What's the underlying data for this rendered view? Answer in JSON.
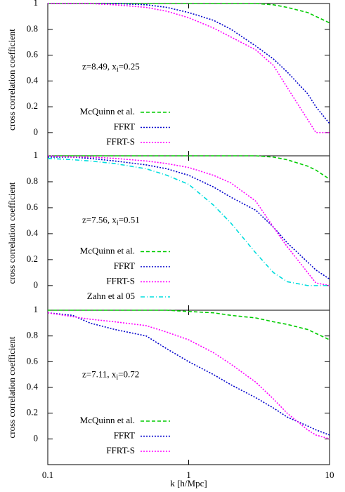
{
  "chart_data": [
    {
      "type": "line",
      "ylabel": "cross correlation coefficient",
      "annotation": [
        "z=8.49, x",
        "i",
        "=0.25"
      ],
      "x": [
        0.1,
        0.15,
        0.2,
        0.3,
        0.5,
        0.7,
        1,
        1.5,
        2,
        3,
        4,
        5,
        7,
        8,
        10
      ],
      "xlim": [
        0.1,
        10
      ],
      "xticks": [
        0.1,
        1,
        10
      ],
      "xlog": true,
      "xtick_labels": false,
      "ylim": [
        -0.18,
        1
      ],
      "yticks": [
        0,
        0.2,
        0.4,
        0.6,
        0.8,
        1
      ],
      "legend": "lower left",
      "series": [
        {
          "name": "McQuinn et al.",
          "color": "#00cc00",
          "dash": "dashed",
          "values": [
            1,
            1,
            1,
            1,
            1,
            1,
            1,
            1,
            1,
            1,
            0.99,
            0.97,
            0.93,
            0.9,
            0.85
          ]
        },
        {
          "name": "FFRT",
          "color": "#0000cc",
          "dash": "dotted",
          "values": [
            1,
            1,
            1,
            1,
            0.99,
            0.97,
            0.93,
            0.87,
            0.8,
            0.67,
            0.57,
            0.47,
            0.3,
            0.2,
            0.07
          ]
        },
        {
          "name": "FFRT-S",
          "color": "#ff00ff",
          "dash": "dotted",
          "values": [
            1,
            1,
            1,
            0.99,
            0.97,
            0.94,
            0.89,
            0.81,
            0.74,
            0.64,
            0.52,
            0.35,
            0.1,
            0,
            0
          ]
        }
      ]
    },
    {
      "type": "line",
      "ylabel": "cross correlation coefficient",
      "annotation": [
        "z=7.56, x",
        "i",
        "=0.51"
      ],
      "x": [
        0.1,
        0.15,
        0.2,
        0.3,
        0.5,
        0.7,
        1,
        1.5,
        2,
        3,
        4,
        5,
        7,
        8,
        10
      ],
      "xlim": [
        0.1,
        10
      ],
      "xticks": [
        0.1,
        1,
        10
      ],
      "xlog": true,
      "xtick_labels": false,
      "ylim": [
        -0.19,
        1
      ],
      "yticks": [
        0,
        0.2,
        0.4,
        0.6,
        0.8,
        1
      ],
      "legend": "lower left",
      "series": [
        {
          "name": "McQuinn et al.",
          "color": "#00cc00",
          "dash": "dashed",
          "values": [
            1,
            1,
            1,
            1,
            1,
            1,
            1,
            1,
            1,
            1,
            0.99,
            0.97,
            0.92,
            0.89,
            0.82
          ]
        },
        {
          "name": "FFRT",
          "color": "#0000cc",
          "dash": "dotted",
          "values": [
            0.99,
            0.99,
            0.98,
            0.96,
            0.93,
            0.9,
            0.85,
            0.76,
            0.68,
            0.58,
            0.45,
            0.33,
            0.18,
            0.12,
            0.05
          ]
        },
        {
          "name": "FFRT-S",
          "color": "#ff00ff",
          "dash": "dotted",
          "values": [
            1,
            0.99,
            0.99,
            0.98,
            0.96,
            0.94,
            0.91,
            0.85,
            0.79,
            0.65,
            0.45,
            0.3,
            0.1,
            0.02,
            0
          ]
        },
        {
          "name": "Zahn et al 05",
          "color": "#00dddd",
          "dash": "dashdot",
          "values": [
            0.98,
            0.97,
            0.96,
            0.94,
            0.9,
            0.85,
            0.78,
            0.62,
            0.48,
            0.25,
            0.1,
            0.03,
            0,
            0,
            0
          ]
        }
      ]
    },
    {
      "type": "line",
      "ylabel": "cross correlation coefficient",
      "xlabel": "k [h/Mpc]",
      "annotation": [
        "z=7.11, x",
        "i",
        "=0.72"
      ],
      "x": [
        0.1,
        0.15,
        0.2,
        0.3,
        0.5,
        0.7,
        1,
        1.5,
        2,
        3,
        4,
        5,
        7,
        8,
        10
      ],
      "xlim": [
        0.1,
        10
      ],
      "xticks": [
        0.1,
        1,
        10
      ],
      "xlog": true,
      "xtick_labels": true,
      "ylim": [
        -0.2,
        1
      ],
      "yticks": [
        0,
        0.2,
        0.4,
        0.6,
        0.8,
        1
      ],
      "legend": "lower left",
      "series": [
        {
          "name": "McQuinn et al.",
          "color": "#00cc00",
          "dash": "dashed",
          "values": [
            1,
            1,
            1,
            1,
            1,
            1,
            0.99,
            0.98,
            0.96,
            0.94,
            0.91,
            0.89,
            0.85,
            0.82,
            0.77
          ]
        },
        {
          "name": "FFRT",
          "color": "#0000cc",
          "dash": "dotted",
          "values": [
            0.98,
            0.96,
            0.9,
            0.85,
            0.8,
            0.7,
            0.6,
            0.5,
            0.42,
            0.32,
            0.24,
            0.17,
            0.1,
            0.07,
            0.03
          ]
        },
        {
          "name": "FFRT-S",
          "color": "#ff00ff",
          "dash": "dotted",
          "values": [
            0.98,
            0.95,
            0.93,
            0.91,
            0.88,
            0.83,
            0.77,
            0.67,
            0.58,
            0.44,
            0.31,
            0.2,
            0.07,
            0.03,
            0
          ]
        }
      ]
    }
  ]
}
